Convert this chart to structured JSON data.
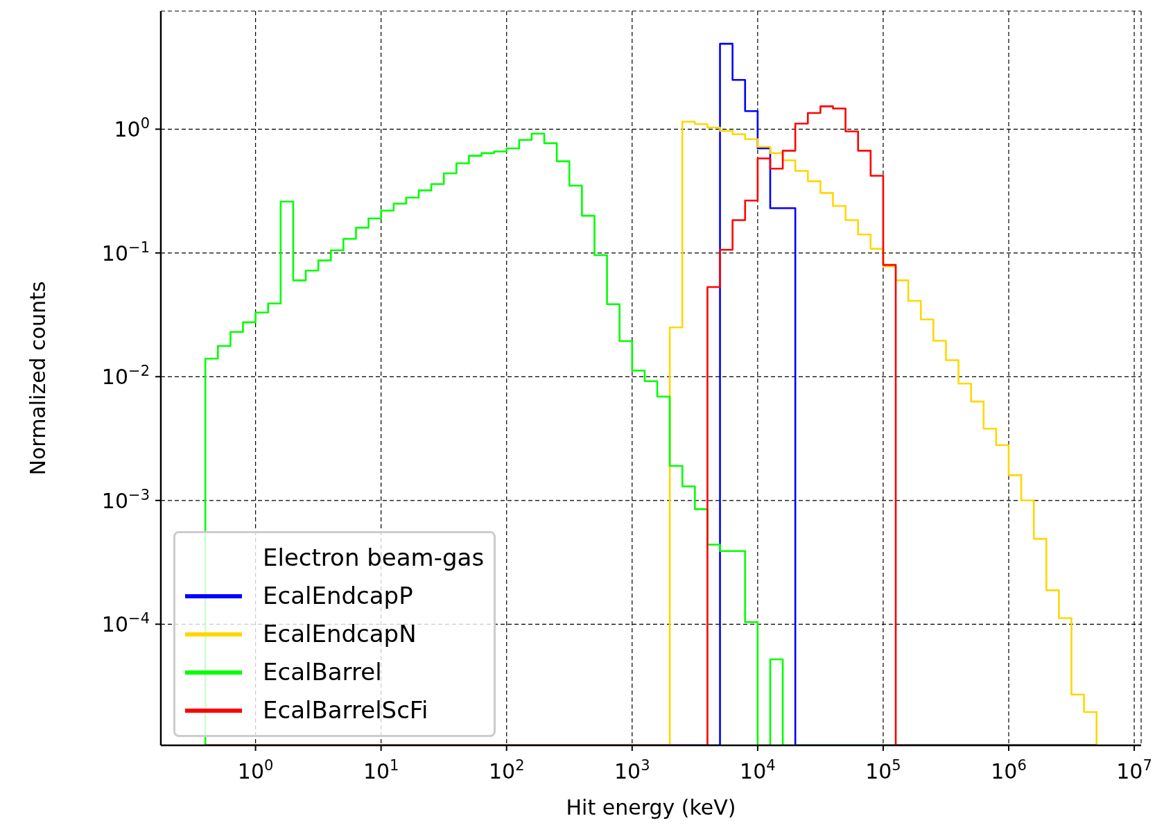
{
  "chart_data": {
    "type": "histogram",
    "xlabel": "Hit energy (keV)",
    "ylabel": "Normalized counts",
    "legend_title": "Electron beam-gas",
    "log": "xy",
    "grid": true,
    "legend": "lower left",
    "bins": [
      0.3981,
      0.5012,
      0.631,
      0.7943,
      1,
      1.259,
      1.585,
      1.995,
      2.512,
      3.162,
      3.981,
      5.012,
      6.31,
      7.943,
      10,
      12.59,
      15.85,
      19.95,
      25.12,
      31.62,
      39.81,
      50.12,
      63.1,
      79.43,
      100,
      125.9,
      158.5,
      199.5,
      251.2,
      316.2,
      398.1,
      501.2,
      631,
      794.3,
      1000,
      1259,
      1585,
      1995,
      2512,
      3162,
      3981,
      5012,
      6310,
      7943,
      10000,
      12590,
      15850,
      19950,
      25120,
      31620,
      39810,
      50120,
      63100,
      79430,
      100000,
      125900,
      158500,
      199500,
      251200,
      316200,
      398100,
      501200,
      631000,
      794300,
      1000000,
      1259000,
      1585000,
      1995000,
      2512000,
      3162000,
      3981000,
      5012000
    ],
    "series": [
      {
        "name": "EcalEndcapP",
        "color": "#0000ff",
        "values": [
          null,
          null,
          null,
          null,
          null,
          null,
          null,
          null,
          null,
          null,
          null,
          null,
          null,
          null,
          null,
          null,
          null,
          null,
          null,
          null,
          null,
          null,
          null,
          null,
          null,
          null,
          null,
          null,
          null,
          null,
          null,
          null,
          null,
          null,
          null,
          null,
          null,
          null,
          null,
          null,
          null,
          4.9,
          2.5,
          1.4,
          0.7,
          0.23,
          0.23,
          null,
          null,
          null,
          null,
          null,
          null,
          null,
          null,
          null,
          null,
          null,
          null,
          null,
          null,
          null,
          null,
          null,
          null,
          null,
          null,
          null,
          null,
          null,
          null
        ]
      },
      {
        "name": "EcalEndcapN",
        "color": "#ffd700",
        "values": [
          null,
          null,
          null,
          null,
          null,
          null,
          null,
          null,
          null,
          null,
          null,
          null,
          null,
          null,
          null,
          null,
          null,
          null,
          null,
          null,
          null,
          null,
          null,
          null,
          null,
          null,
          null,
          null,
          null,
          null,
          null,
          null,
          null,
          null,
          null,
          null,
          null,
          0.025,
          1.15,
          1.1,
          1.03,
          0.97,
          0.91,
          0.83,
          0.72,
          0.64,
          0.56,
          0.46,
          0.38,
          0.305,
          0.24,
          0.184,
          0.141,
          0.108,
          0.078,
          0.06,
          0.041,
          0.029,
          0.0195,
          0.0136,
          0.0088,
          0.0063,
          0.0038,
          0.0028,
          0.0016,
          0.001,
          0.00049,
          0.000188,
          0.000112,
          2.7e-05,
          1.95e-05
        ]
      },
      {
        "name": "EcalBarrel",
        "color": "#00ff00",
        "values": [
          0.014,
          0.0177,
          0.023,
          0.0275,
          0.033,
          0.039,
          0.26,
          0.06,
          0.072,
          0.087,
          0.105,
          0.13,
          0.16,
          0.19,
          0.22,
          0.25,
          0.28,
          0.32,
          0.36,
          0.44,
          0.53,
          0.61,
          0.64,
          0.66,
          0.7,
          0.82,
          0.92,
          0.77,
          0.55,
          0.35,
          0.2,
          0.096,
          0.0385,
          0.0194,
          0.0112,
          0.0092,
          0.0069,
          0.0019,
          0.0013,
          0.00085,
          0.00044,
          0.00039,
          0.00039,
          0.000104,
          null,
          5.2e-05,
          null,
          null,
          null,
          null,
          null,
          null,
          null,
          null,
          null,
          null,
          null,
          null,
          null,
          null,
          null,
          null,
          null,
          null,
          null,
          null,
          null,
          null,
          null,
          null,
          null
        ]
      },
      {
        "name": "EcalBarrelScFi",
        "color": "#ff0000",
        "values": [
          null,
          null,
          null,
          null,
          null,
          null,
          null,
          null,
          null,
          null,
          null,
          null,
          null,
          null,
          null,
          null,
          null,
          null,
          null,
          null,
          null,
          null,
          null,
          null,
          null,
          null,
          null,
          null,
          null,
          null,
          null,
          null,
          null,
          null,
          null,
          null,
          null,
          null,
          null,
          null,
          0.053,
          0.106,
          0.184,
          0.265,
          0.58,
          0.48,
          0.67,
          1.11,
          1.35,
          1.53,
          1.47,
          0.96,
          0.67,
          0.42,
          0.08,
          null,
          null,
          null,
          null,
          null,
          null,
          null,
          null,
          null,
          null,
          null,
          null,
          null,
          null,
          null,
          null
        ]
      }
    ],
    "xlim": [
      0.176,
      11350000
    ],
    "ylim": [
      1.05e-05,
      9
    ],
    "xticks": [
      {
        "value": 1,
        "label": "10$^{0}$"
      },
      {
        "value": 10,
        "label": "10$^{1}$"
      },
      {
        "value": 100,
        "label": "10$^{2}$"
      },
      {
        "value": 1000,
        "label": "10$^{3}$"
      },
      {
        "value": 10000,
        "label": "10$^{4}$"
      },
      {
        "value": 100000,
        "label": "10$^{5}$"
      },
      {
        "value": 1000000,
        "label": "10$^{6}$"
      },
      {
        "value": 10000000,
        "label": "10$^{7}$"
      }
    ],
    "yticks": [
      {
        "value": 0.0001,
        "label": "10$^{−4}$"
      },
      {
        "value": 0.001,
        "label": "10$^{−3}$"
      },
      {
        "value": 0.01,
        "label": "10$^{−2}$"
      },
      {
        "value": 0.1,
        "label": "10$^{−1}$"
      },
      {
        "value": 1,
        "label": "10$^{0}$"
      }
    ]
  }
}
